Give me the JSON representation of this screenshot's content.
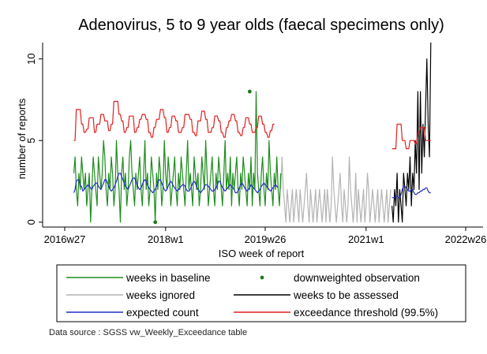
{
  "chart_data": {
    "type": "line",
    "title": "Adenovirus, 5 to 9 year olds (faecal specimens only)",
    "xlabel": "ISO week of report",
    "ylabel": "number of reports",
    "x_tick_labels": [
      "2016w27",
      "2018w1",
      "2019w26",
      "2021w1",
      "2022w26"
    ],
    "x_ticks_index": [
      0,
      78,
      155,
      233,
      310
    ],
    "x_range_index": [
      0,
      310
    ],
    "y_ticks": [
      0,
      5,
      10
    ],
    "ylim": [
      -0.3,
      11
    ],
    "legend_position": "bottom",
    "grid": false,
    "series": [
      {
        "name": "weeks in baseline",
        "color": "#1e8c1e",
        "start_index": 7,
        "values": [
          3,
          4,
          2,
          1,
          3,
          2,
          4,
          3,
          2,
          3,
          1,
          2,
          3,
          0,
          2,
          4,
          3,
          2,
          1,
          4,
          3,
          2,
          3,
          5,
          4,
          2,
          1,
          3,
          2,
          4,
          3,
          1,
          2,
          5,
          3,
          2,
          0,
          3,
          4,
          2,
          3,
          1,
          2,
          4,
          5,
          3,
          2,
          1,
          3,
          2,
          3,
          4,
          2,
          1,
          3,
          5,
          2,
          3,
          1,
          2,
          4,
          3,
          2,
          0,
          3,
          2,
          4,
          3,
          1,
          2,
          5,
          3,
          2,
          4,
          3,
          1,
          2,
          3,
          4,
          2,
          1,
          3,
          2,
          4,
          3,
          2,
          1,
          3,
          5,
          2,
          3,
          2,
          1,
          4,
          3,
          2,
          3,
          1,
          2,
          4,
          3,
          2,
          5,
          3,
          1,
          2,
          3,
          4,
          2,
          1,
          3,
          2,
          4,
          3,
          2,
          1,
          3,
          5,
          2,
          3,
          2,
          4,
          1,
          3,
          2,
          3,
          4,
          2,
          1,
          3,
          2,
          4,
          3,
          2,
          1,
          3,
          2,
          4,
          1,
          3,
          2,
          8,
          3,
          2,
          1,
          3,
          4,
          2,
          1,
          3,
          2,
          5,
          3,
          2,
          1,
          3,
          2,
          4,
          2,
          1,
          3
        ]
      },
      {
        "name": "downweighted observation",
        "color": "#1e7a1e",
        "points": [
          {
            "index": 70,
            "value": 0
          },
          {
            "index": 143,
            "value": 8
          }
        ]
      },
      {
        "name": "weeks ignored",
        "color": "#b4b4b4",
        "start_index": 167,
        "values": [
          2,
          4,
          2,
          1,
          0,
          2,
          1,
          0,
          1,
          2,
          0,
          1,
          2,
          1,
          0,
          2,
          1,
          0,
          1,
          2,
          3,
          1,
          0,
          2,
          1,
          0,
          1,
          2,
          0,
          1,
          2,
          1,
          0,
          1,
          2,
          0,
          2,
          1,
          0,
          1,
          4,
          2,
          1,
          0,
          1,
          2,
          3,
          1,
          0,
          2,
          1,
          0,
          1,
          4,
          2,
          1,
          0,
          1,
          3,
          0,
          2,
          1,
          0,
          1,
          2,
          0,
          1,
          3,
          2,
          0,
          1,
          2,
          1,
          0,
          1,
          2,
          0,
          1,
          2,
          1,
          0,
          1,
          2,
          0,
          1,
          2
        ]
      },
      {
        "name": "weeks to be assessed",
        "color": "#000000",
        "start_index": 253,
        "values": [
          1,
          0,
          2,
          1,
          3,
          0,
          2,
          1,
          0,
          3,
          2,
          1,
          3,
          2,
          4,
          1,
          3,
          2,
          5,
          3,
          8,
          2,
          8,
          3,
          6,
          4,
          7,
          10,
          6,
          4,
          11
        ]
      },
      {
        "name": "expected count",
        "color": "#1f2ec4",
        "segments": [
          {
            "start_index": 7,
            "values": [
              1.8,
              2.0,
              2.5,
              2.6,
              2.6,
              2.2,
              2.2,
              1.9,
              2.0,
              2.1,
              2.2,
              2.3,
              2.2,
              2.1,
              2.0,
              2.2,
              2.3,
              2.4,
              2.4,
              2.2,
              2.1,
              2.0,
              2.2,
              2.4,
              2.6,
              2.6,
              2.4,
              2.2,
              2.0,
              1.9,
              2.0,
              2.1,
              2.3,
              2.5,
              2.8,
              3.0,
              3.0,
              2.8,
              2.6,
              2.4,
              2.2,
              2.1,
              2.0,
              2.2,
              2.4,
              2.6,
              2.7,
              2.7,
              2.5,
              2.3,
              2.1,
              2.0,
              2.1,
              2.3,
              2.5,
              2.6,
              2.5,
              2.3,
              2.1,
              2.0,
              1.9,
              1.8,
              1.9,
              2.0,
              2.2,
              2.4,
              2.6,
              2.6,
              2.4,
              2.2,
              2.0,
              1.9,
              2.0,
              2.2,
              2.4,
              2.5,
              2.4,
              2.2,
              2.1,
              2.0,
              1.9,
              2.0,
              2.1,
              2.2,
              2.3,
              2.3,
              2.2,
              2.0,
              1.9,
              1.9,
              2.0,
              2.2,
              2.4,
              2.5,
              2.4,
              2.2,
              2.0,
              1.9,
              1.8,
              1.9,
              2.0,
              2.2,
              2.3,
              2.3,
              2.2,
              2.1,
              2.0,
              1.9,
              1.9,
              2.0,
              2.1,
              2.3,
              2.5,
              2.5,
              2.3,
              2.1,
              2.0,
              1.9,
              2.0,
              2.1,
              2.2,
              2.3,
              2.2,
              2.1,
              2.0,
              1.8,
              1.8,
              1.9,
              2.1,
              2.3,
              2.4,
              2.3,
              2.1,
              2.0,
              1.9,
              2.0,
              2.1,
              2.3,
              2.2,
              2.1,
              2.0,
              1.9,
              1.8,
              1.9,
              2.0,
              2.2,
              2.3,
              2.4,
              2.3,
              2.2,
              2.1,
              2.0,
              1.9,
              2.0,
              2.1,
              2.2,
              2.3,
              2.2,
              2.1
            ]
          },
          {
            "start_index": 253,
            "values": [
              1.5,
              1.5,
              1.5,
              1.6,
              1.6,
              1.5,
              1.5,
              1.7,
              2.0,
              2.2,
              2.2,
              2.1,
              2.0,
              1.9,
              1.9,
              2.0,
              2.0,
              1.8,
              1.7,
              1.7,
              1.8,
              1.8,
              1.9,
              1.9,
              2.0,
              2.0,
              2.1,
              2.1,
              1.9,
              1.8,
              1.8
            ]
          }
        ]
      },
      {
        "name": "exceedance threshold (99.5%)",
        "color": "#e02020",
        "segments": [
          {
            "start_index": 7,
            "values": [
              5,
              5,
              6.9,
              6.9,
              6.9,
              6.9,
              6,
              6,
              5.5,
              5.5,
              5.7,
              5.7,
              6.4,
              6.4,
              6.4,
              6.4,
              5.5,
              5.5,
              6,
              6,
              6,
              6.6,
              6.6,
              6.6,
              6.2,
              6.2,
              6.2,
              5.6,
              5.6,
              6,
              6,
              7.4,
              7.4,
              7.4,
              7.4,
              6.6,
              6.6,
              6.2,
              6.2,
              5.5,
              5.5,
              5.8,
              5.8,
              6.5,
              6.5,
              6.5,
              6.5,
              5.5,
              5.5,
              5.8,
              5.8,
              6.3,
              6.3,
              6.6,
              6.6,
              6.6,
              6.3,
              6.3,
              5.5,
              5.5,
              5.2,
              5.2,
              5.8,
              5.8,
              6.3,
              6.3,
              6.3,
              6.9,
              6.9,
              6.9,
              6.4,
              6.4,
              5.5,
              5.5,
              5.8,
              5.8,
              6.5,
              6.5,
              6.5,
              6.2,
              6.2,
              5.5,
              5.5,
              5.5,
              5.8,
              5.8,
              6.6,
              6.6,
              6.6,
              6.6,
              6.3,
              6.3,
              5.5,
              5.5,
              5.3,
              5.3,
              6.2,
              6.2,
              6.2,
              6.8,
              6.8,
              6.8,
              6.3,
              6.3,
              5.5,
              5.5,
              5.5,
              5.8,
              5.8,
              6.5,
              6.5,
              6.5,
              6.2,
              6.2,
              5.5,
              5.5,
              5.2,
              5.2,
              5.8,
              5.8,
              6.2,
              6.2,
              6.6,
              6.6,
              6.6,
              6.2,
              6.2,
              5.5,
              5.5,
              5.3,
              5.3,
              5.8,
              5.8,
              6.4,
              6.4,
              6.4,
              6.0,
              6.0,
              5.5,
              5.5,
              5.5,
              5.8,
              5.8,
              6.5,
              6.5,
              6.5,
              6.0,
              6.0,
              5.5,
              5.5,
              5.2,
              5.2,
              5.6,
              5.6,
              6.0,
              6.0
            ]
          },
          {
            "start_index": 253,
            "values": [
              4.5,
              4.5,
              4.5,
              4.5,
              6,
              6,
              6,
              6,
              5,
              5,
              5,
              4.5,
              4.5,
              4.5,
              5,
              5,
              5,
              5,
              4.8,
              4.8,
              5.5,
              5.5,
              5.8,
              5.8,
              5.8,
              5.8,
              5,
              5,
              5,
              5,
              5
            ]
          }
        ]
      }
    ]
  },
  "legend": {
    "items": [
      {
        "label": "weeks in baseline",
        "style": "line",
        "color": "#1e8c1e"
      },
      {
        "label": "downweighted observation",
        "style": "dot",
        "color": "#1e7a1e"
      },
      {
        "label": "weeks ignored",
        "style": "line",
        "color": "#b4b4b4"
      },
      {
        "label": "weeks to be assessed",
        "style": "line",
        "color": "#000000"
      },
      {
        "label": "expected count",
        "style": "line",
        "color": "#1f2ec4"
      },
      {
        "label": "exceedance threshold (99.5%)",
        "style": "line",
        "color": "#e02020"
      }
    ]
  },
  "source_note": "Data source : SGSS vw_Weekly_Exceedance table"
}
